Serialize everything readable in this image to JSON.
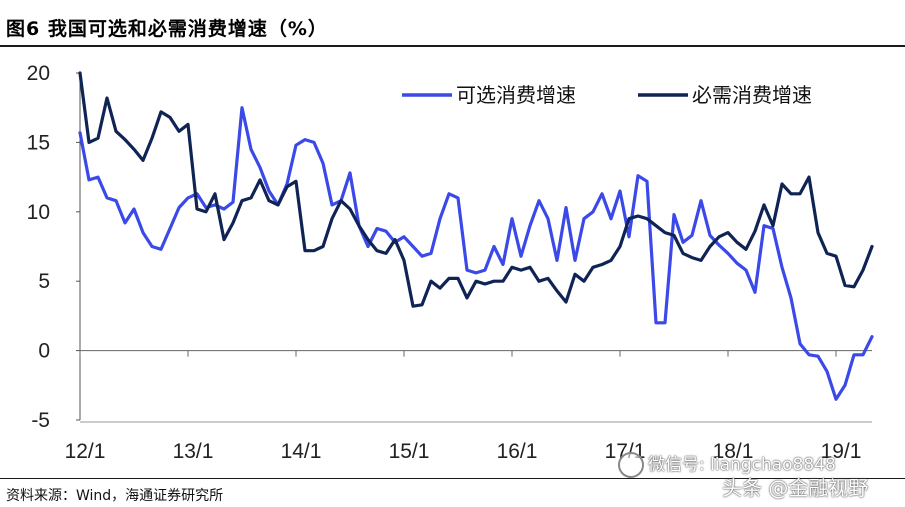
{
  "figure": {
    "title": "图6  我国可选和必需消费增速（%）",
    "source": "资料来源：Wind，海通证券研究所"
  },
  "watermark": {
    "line1": "微信号: liangchao8848",
    "line2": "头条 @金融视野"
  },
  "chart_data": {
    "type": "line",
    "title": "",
    "xlabel": "",
    "ylabel": "",
    "ylim": [
      -5,
      20
    ],
    "yticks": [
      -5,
      0,
      5,
      10,
      15,
      20
    ],
    "xlim": [
      "2012-01",
      "2019-05"
    ],
    "xticks": [
      {
        "label": "12/1",
        "date": "2012-01"
      },
      {
        "label": "13/1",
        "date": "2013-01"
      },
      {
        "label": "14/1",
        "date": "2014-01"
      },
      {
        "label": "15/1",
        "date": "2015-01"
      },
      {
        "label": "16/1",
        "date": "2016-01"
      },
      {
        "label": "17/1",
        "date": "2017-01"
      },
      {
        "label": "18/1",
        "date": "2018-01"
      },
      {
        "label": "19/1",
        "date": "2019-01"
      }
    ],
    "grid": false,
    "legend": "top-right",
    "series": [
      {
        "name": "可选消费增速",
        "color": "#3a49e8",
        "points": [
          [
            "2012-01",
            15.7
          ],
          [
            "2012-02",
            12.3
          ],
          [
            "2012-03",
            12.5
          ],
          [
            "2012-04",
            11.0
          ],
          [
            "2012-05",
            10.8
          ],
          [
            "2012-06",
            9.2
          ],
          [
            "2012-07",
            10.2
          ],
          [
            "2012-08",
            8.5
          ],
          [
            "2012-09",
            7.5
          ],
          [
            "2012-10",
            7.3
          ],
          [
            "2012-11",
            8.8
          ],
          [
            "2012-12",
            10.3
          ],
          [
            "2013-01",
            11.0
          ],
          [
            "2013-02",
            11.3
          ],
          [
            "2013-03",
            10.3
          ],
          [
            "2013-04",
            10.5
          ],
          [
            "2013-05",
            10.2
          ],
          [
            "2013-06",
            10.7
          ],
          [
            "2013-07",
            17.5
          ],
          [
            "2013-08",
            14.5
          ],
          [
            "2013-09",
            13.2
          ],
          [
            "2013-10",
            11.5
          ],
          [
            "2013-11",
            10.5
          ],
          [
            "2013-12",
            12.0
          ],
          [
            "2014-01",
            14.8
          ],
          [
            "2014-02",
            15.2
          ],
          [
            "2014-03",
            15.0
          ],
          [
            "2014-04",
            13.5
          ],
          [
            "2014-05",
            10.5
          ],
          [
            "2014-06",
            10.8
          ],
          [
            "2014-07",
            12.8
          ],
          [
            "2014-08",
            9.0
          ],
          [
            "2014-09",
            7.5
          ],
          [
            "2014-10",
            8.8
          ],
          [
            "2014-11",
            8.6
          ],
          [
            "2014-12",
            7.8
          ],
          [
            "2015-01",
            8.2
          ],
          [
            "2015-02",
            7.5
          ],
          [
            "2015-03",
            6.8
          ],
          [
            "2015-04",
            7.0
          ],
          [
            "2015-05",
            9.5
          ],
          [
            "2015-06",
            11.3
          ],
          [
            "2015-07",
            11.0
          ],
          [
            "2015-08",
            5.8
          ],
          [
            "2015-09",
            5.6
          ],
          [
            "2015-10",
            5.8
          ],
          [
            "2015-11",
            7.5
          ],
          [
            "2015-12",
            6.2
          ],
          [
            "2016-01",
            9.5
          ],
          [
            "2016-02",
            6.8
          ],
          [
            "2016-03",
            9.0
          ],
          [
            "2016-04",
            10.8
          ],
          [
            "2016-05",
            9.5
          ],
          [
            "2016-06",
            6.5
          ],
          [
            "2016-07",
            10.3
          ],
          [
            "2016-08",
            6.5
          ],
          [
            "2016-09",
            9.5
          ],
          [
            "2016-10",
            10.0
          ],
          [
            "2016-11",
            11.3
          ],
          [
            "2016-12",
            9.5
          ],
          [
            "2017-01",
            11.5
          ],
          [
            "2017-02",
            8.2
          ],
          [
            "2017-03",
            12.6
          ],
          [
            "2017-04",
            12.2
          ],
          [
            "2017-05",
            2.0
          ],
          [
            "2017-06",
            2.0
          ],
          [
            "2017-07",
            9.8
          ],
          [
            "2017-08",
            7.8
          ],
          [
            "2017-09",
            8.3
          ],
          [
            "2017-10",
            10.8
          ],
          [
            "2017-11",
            8.3
          ],
          [
            "2017-12",
            7.6
          ],
          [
            "2018-01",
            7.0
          ],
          [
            "2018-02",
            6.3
          ],
          [
            "2018-03",
            5.8
          ],
          [
            "2018-04",
            4.2
          ],
          [
            "2018-05",
            9.0
          ],
          [
            "2018-06",
            8.8
          ],
          [
            "2018-07",
            6.0
          ],
          [
            "2018-08",
            3.8
          ],
          [
            "2018-09",
            0.5
          ],
          [
            "2018-10",
            -0.3
          ],
          [
            "2018-11",
            -0.4
          ],
          [
            "2018-12",
            -1.5
          ],
          [
            "2019-01",
            -3.5
          ],
          [
            "2019-02",
            -2.5
          ],
          [
            "2019-03",
            -0.3
          ],
          [
            "2019-04",
            -0.3
          ],
          [
            "2019-05",
            1.0
          ]
        ]
      },
      {
        "name": "必需消费增速",
        "color": "#0f2454",
        "points": [
          [
            "2012-01",
            20.0
          ],
          [
            "2012-02",
            15.0
          ],
          [
            "2012-03",
            15.3
          ],
          [
            "2012-04",
            18.2
          ],
          [
            "2012-05",
            15.8
          ],
          [
            "2012-06",
            15.2
          ],
          [
            "2012-07",
            14.5
          ],
          [
            "2012-08",
            13.7
          ],
          [
            "2012-09",
            15.3
          ],
          [
            "2012-10",
            17.2
          ],
          [
            "2012-11",
            16.8
          ],
          [
            "2012-12",
            15.8
          ],
          [
            "2013-01",
            16.3
          ],
          [
            "2013-02",
            10.2
          ],
          [
            "2013-03",
            10.0
          ],
          [
            "2013-04",
            11.3
          ],
          [
            "2013-05",
            8.0
          ],
          [
            "2013-06",
            9.2
          ],
          [
            "2013-07",
            10.8
          ],
          [
            "2013-08",
            11.0
          ],
          [
            "2013-09",
            12.3
          ],
          [
            "2013-10",
            10.8
          ],
          [
            "2013-11",
            10.5
          ],
          [
            "2013-12",
            11.8
          ],
          [
            "2014-01",
            12.2
          ],
          [
            "2014-02",
            7.2
          ],
          [
            "2014-03",
            7.2
          ],
          [
            "2014-04",
            7.5
          ],
          [
            "2014-05",
            9.5
          ],
          [
            "2014-06",
            10.8
          ],
          [
            "2014-07",
            10.2
          ],
          [
            "2014-08",
            9.0
          ],
          [
            "2014-09",
            8.0
          ],
          [
            "2014-10",
            7.2
          ],
          [
            "2014-11",
            7.0
          ],
          [
            "2014-12",
            8.0
          ],
          [
            "2015-01",
            6.5
          ],
          [
            "2015-02",
            3.2
          ],
          [
            "2015-03",
            3.3
          ],
          [
            "2015-04",
            5.0
          ],
          [
            "2015-05",
            4.5
          ],
          [
            "2015-06",
            5.2
          ],
          [
            "2015-07",
            5.2
          ],
          [
            "2015-08",
            3.8
          ],
          [
            "2015-09",
            5.0
          ],
          [
            "2015-10",
            4.8
          ],
          [
            "2015-11",
            5.0
          ],
          [
            "2015-12",
            5.0
          ],
          [
            "2016-01",
            6.0
          ],
          [
            "2016-02",
            5.8
          ],
          [
            "2016-03",
            6.0
          ],
          [
            "2016-04",
            5.0
          ],
          [
            "2016-05",
            5.2
          ],
          [
            "2016-06",
            4.3
          ],
          [
            "2016-07",
            3.5
          ],
          [
            "2016-08",
            5.5
          ],
          [
            "2016-09",
            5.0
          ],
          [
            "2016-10",
            6.0
          ],
          [
            "2016-11",
            6.2
          ],
          [
            "2016-12",
            6.5
          ],
          [
            "2017-01",
            7.5
          ],
          [
            "2017-02",
            9.5
          ],
          [
            "2017-03",
            9.7
          ],
          [
            "2017-04",
            9.5
          ],
          [
            "2017-05",
            9.0
          ],
          [
            "2017-06",
            8.5
          ],
          [
            "2017-07",
            8.3
          ],
          [
            "2017-08",
            7.0
          ],
          [
            "2017-09",
            6.7
          ],
          [
            "2017-10",
            6.5
          ],
          [
            "2017-11",
            7.5
          ],
          [
            "2017-12",
            8.2
          ],
          [
            "2018-01",
            8.5
          ],
          [
            "2018-02",
            7.8
          ],
          [
            "2018-03",
            7.3
          ],
          [
            "2018-04",
            8.6
          ],
          [
            "2018-05",
            10.5
          ],
          [
            "2018-06",
            9.0
          ],
          [
            "2018-07",
            12.0
          ],
          [
            "2018-08",
            11.3
          ],
          [
            "2018-09",
            11.3
          ],
          [
            "2018-10",
            12.5
          ],
          [
            "2018-11",
            8.5
          ],
          [
            "2018-12",
            7.0
          ],
          [
            "2019-01",
            6.8
          ],
          [
            "2019-02",
            4.7
          ],
          [
            "2019-03",
            4.6
          ],
          [
            "2019-04",
            5.8
          ],
          [
            "2019-05",
            7.5
          ]
        ]
      }
    ]
  }
}
